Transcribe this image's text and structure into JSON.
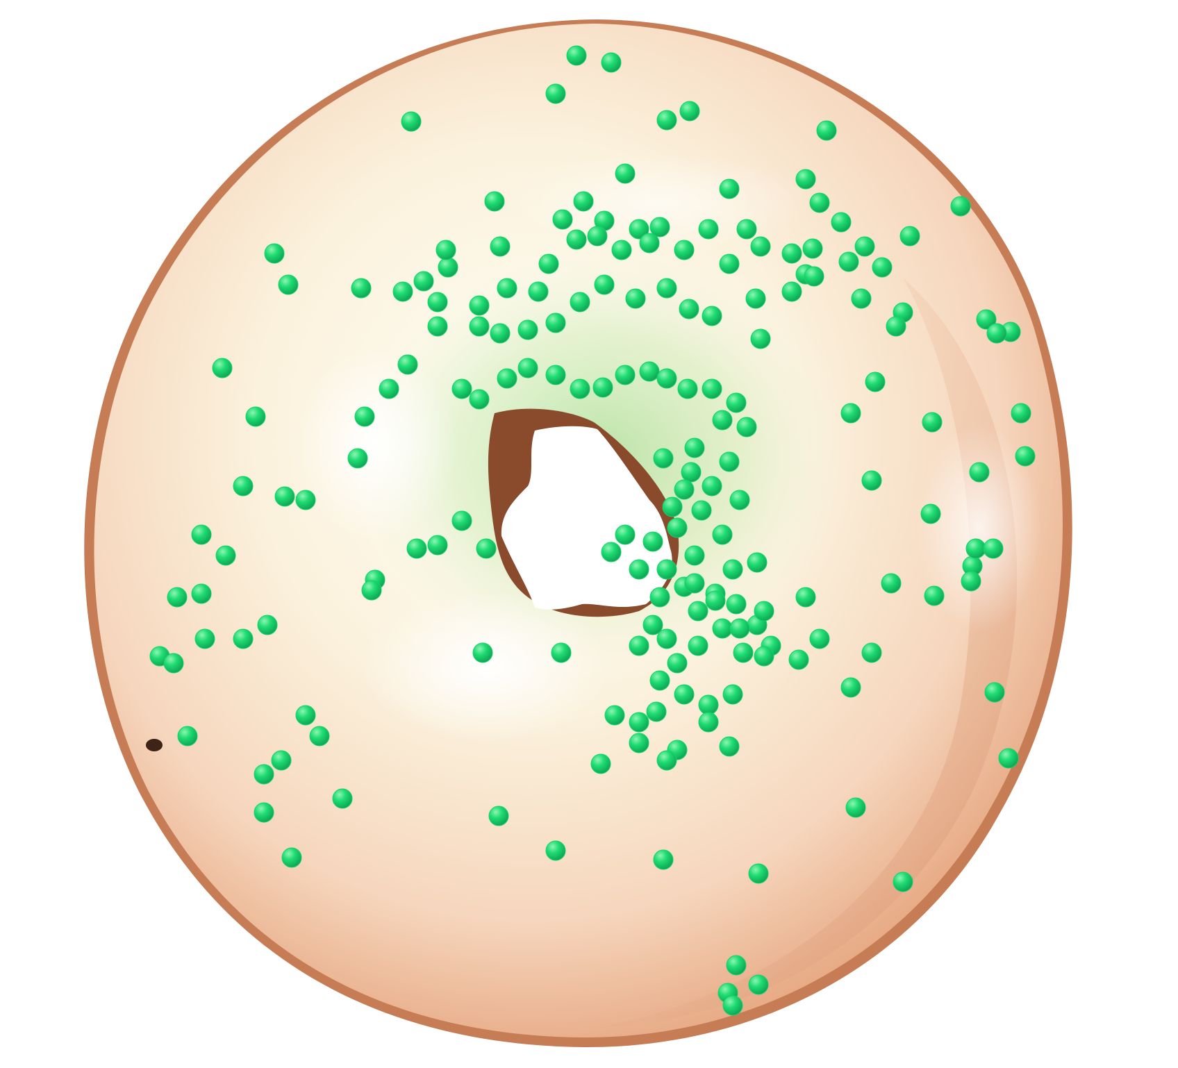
{
  "image": {
    "subject": "glazed-donut",
    "background_color": "#ffffff",
    "glaze_color": "#fbf0dc",
    "glaze_shadow_color": "#e9b89a",
    "dough_edge_color": "#b9704a",
    "hole_shadow_color": "#8a4a2c",
    "sprinkle_color": "#17d26a",
    "sprinkle_highlight_color": "#7ff0a6",
    "green_reflection_color": "#b9e6a2"
  }
}
